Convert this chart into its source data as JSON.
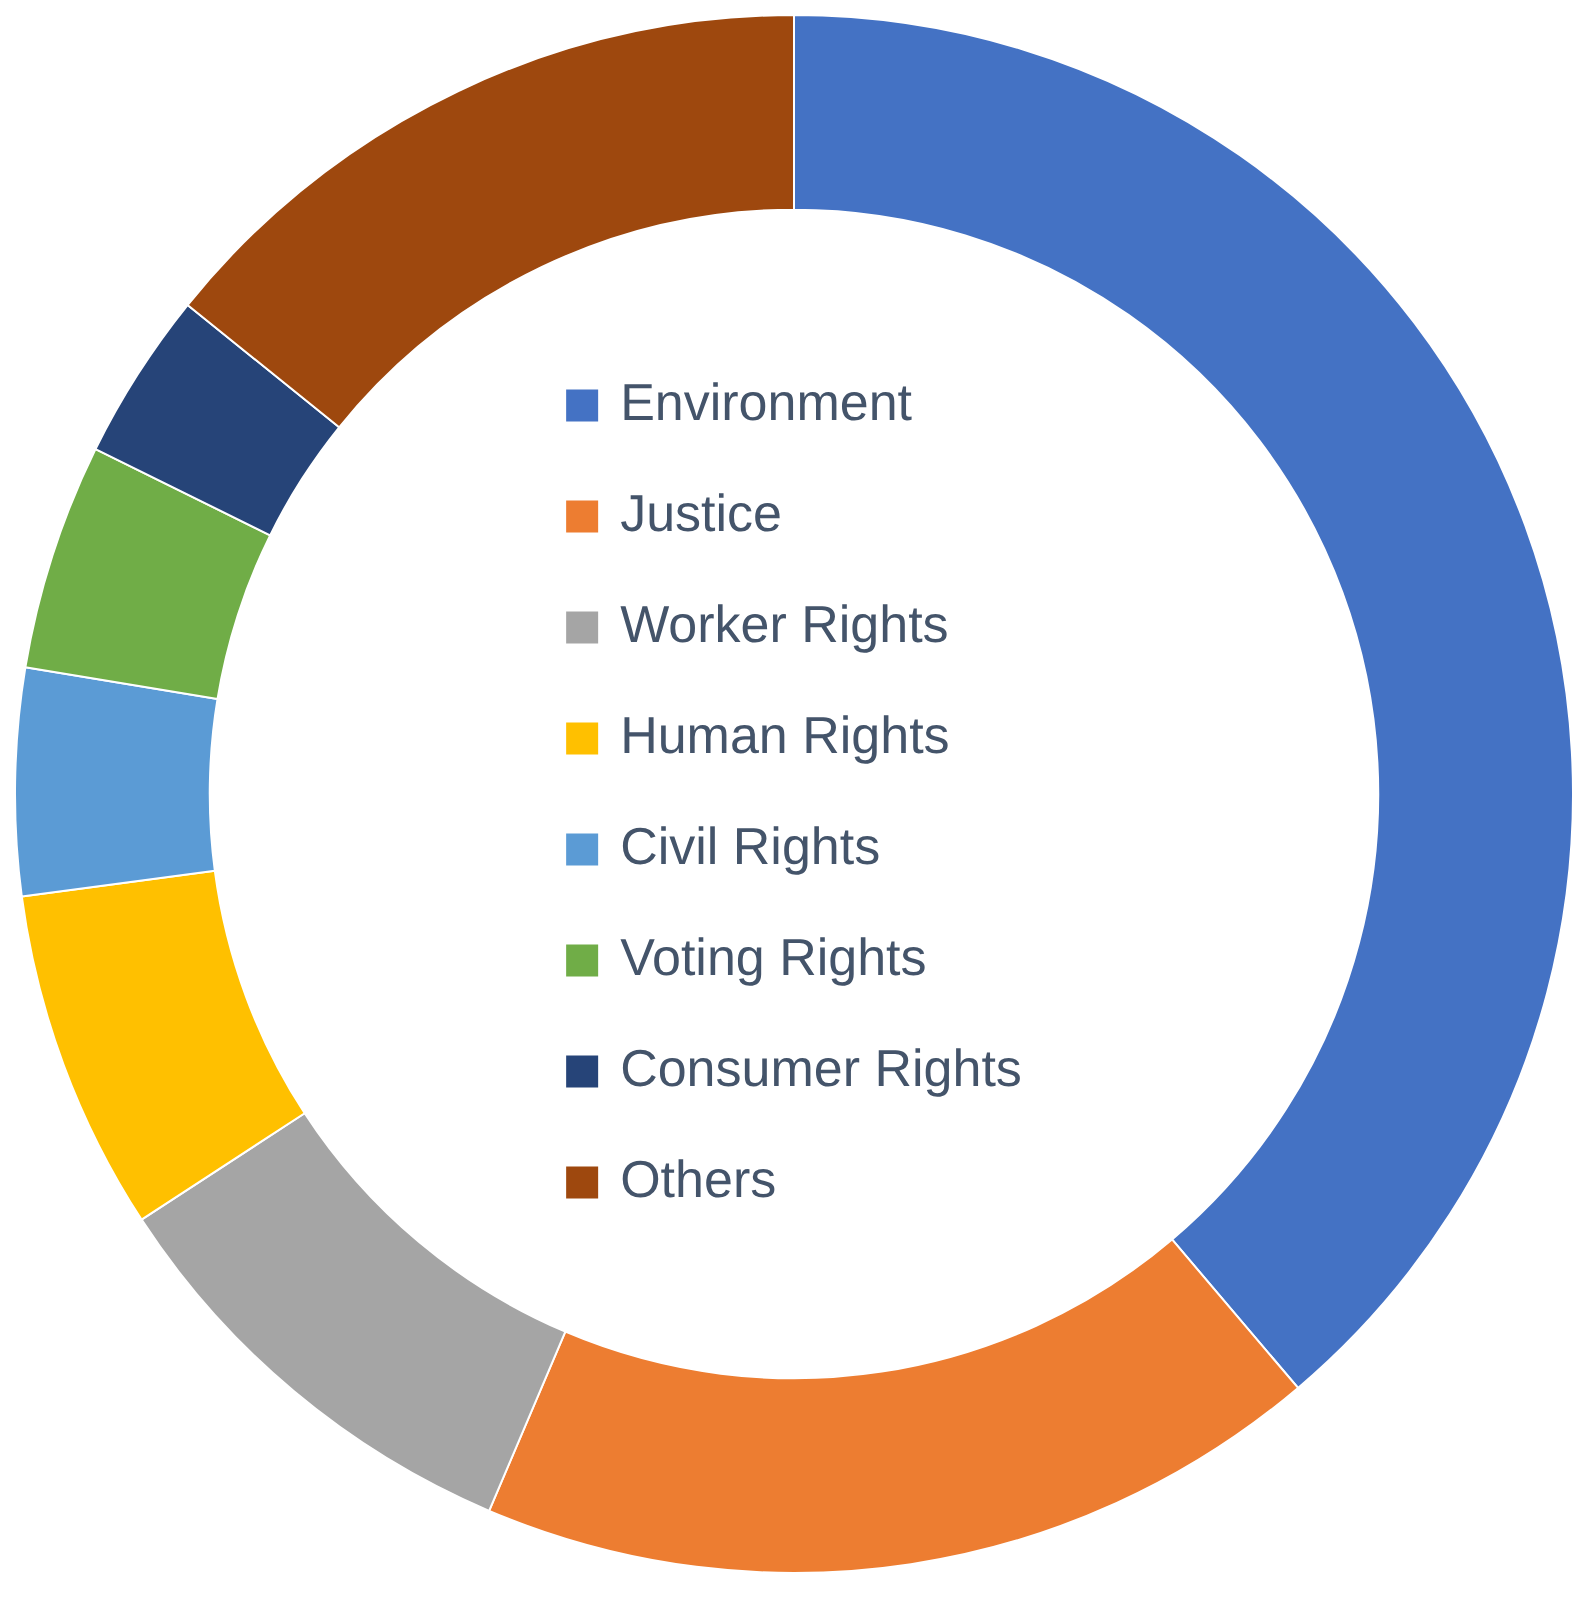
{
  "chart_data": {
    "type": "donut",
    "categories": [
      "Environment",
      "Justice",
      "Worker Rights",
      "Human Rights",
      "Civil Rights",
      "Voting Rights",
      "Consumer Rights",
      "Others"
    ],
    "values": [
      38.8,
      17.6,
      9.4,
      7.1,
      4.7,
      4.7,
      3.5,
      14.2
    ],
    "colors": [
      "#4472c4",
      "#ed7d31",
      "#a5a5a5",
      "#ffc000",
      "#5b9bd5",
      "#70ad47",
      "#264478",
      "#9e480e"
    ],
    "legend": "center"
  }
}
